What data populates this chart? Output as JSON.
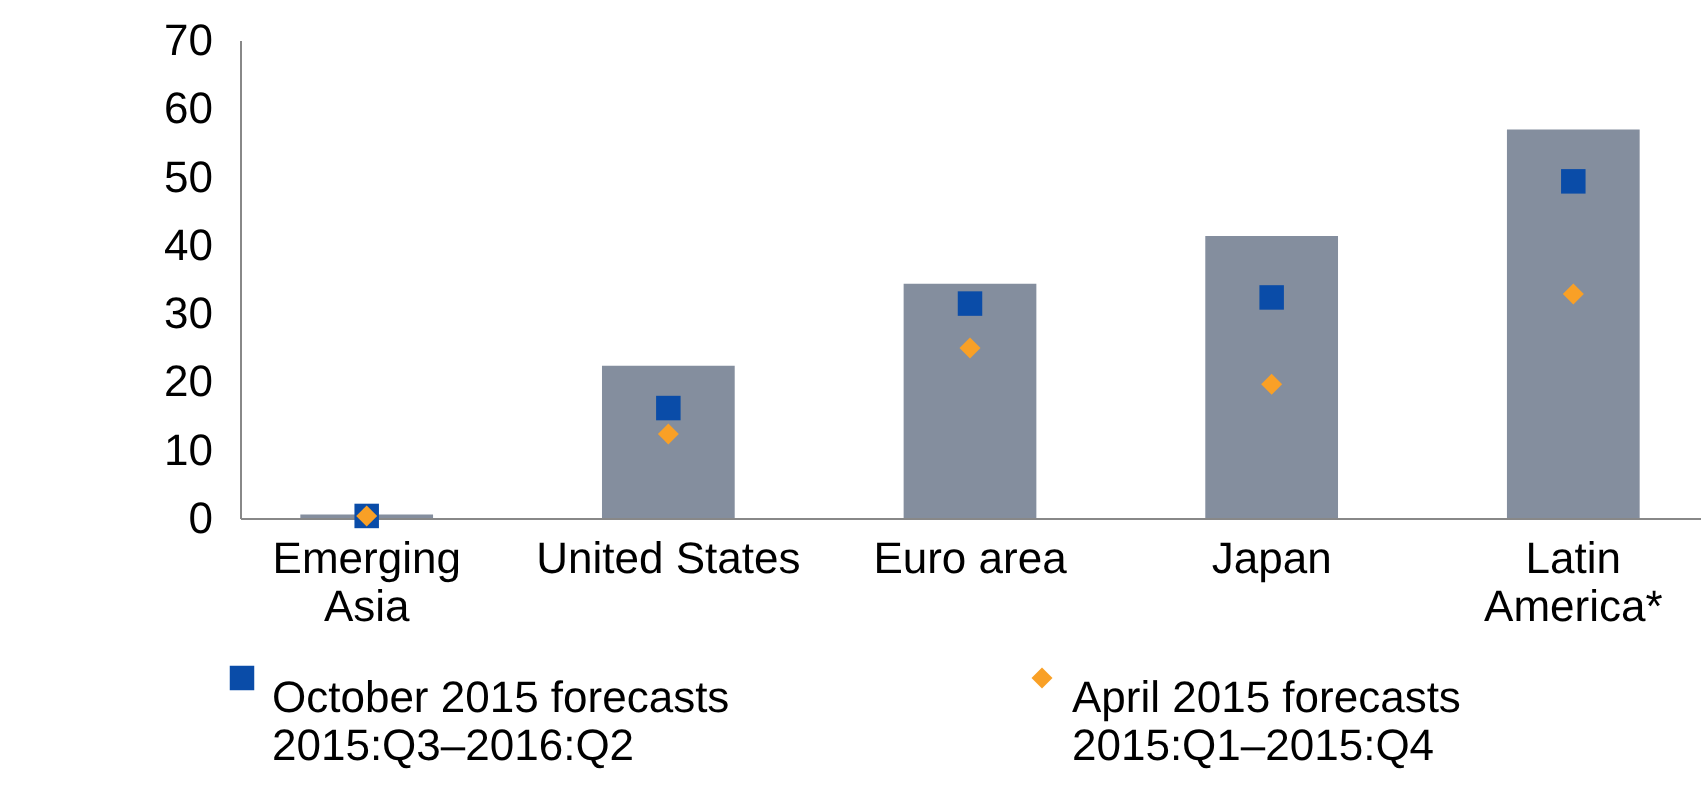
{
  "chart_data": {
    "type": "bar",
    "categories": [
      "Emerging\nAsia",
      "United States",
      "Euro area",
      "Japan",
      "Latin\nAmerica*"
    ],
    "series": [
      {
        "type": "bar",
        "color": "#848e9e",
        "values": [
          0.5,
          22.3,
          34.3,
          41.3,
          56.9
        ]
      },
      {
        "type": "scatter",
        "name": "October 2015 forecasts",
        "marker": "square",
        "color": "#0a4ca8",
        "values": [
          0.3,
          16.1,
          31.4,
          32.3,
          49.3
        ]
      },
      {
        "type": "scatter",
        "name": "April 2015 forecasts",
        "marker": "diamond",
        "color": "#f9a026",
        "values": [
          0.3,
          12.3,
          24.9,
          19.6,
          32.8
        ]
      }
    ],
    "annotations": [
      "2015:Q3–2016:Q2",
      "2015:Q1–2015:Q4"
    ],
    "ylim": [
      0,
      70
    ],
    "yticks": [
      0,
      10,
      20,
      30,
      40,
      50,
      60,
      70
    ],
    "grid": false,
    "legend": "bottom"
  }
}
